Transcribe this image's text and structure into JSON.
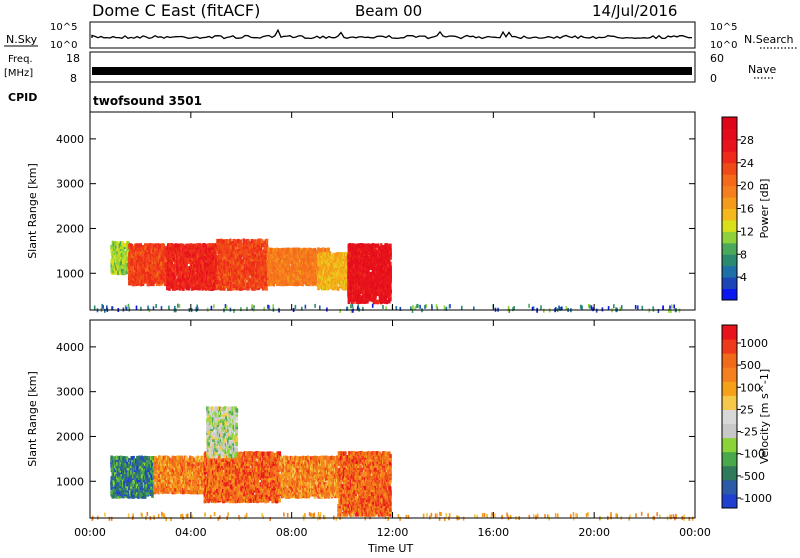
{
  "header": {
    "title": "Dome C East (fitACF)",
    "beam": "Beam 00",
    "date": "14/Jul/2016"
  },
  "aux_panels": {
    "nsky": {
      "label": "N.Sky",
      "scale_top": "10^5",
      "scale_bottom": "10^0"
    },
    "nsearch": {
      "label": "N.Search",
      "scale_top": "10^5",
      "scale_bottom": "10^0"
    },
    "freq": {
      "label_line1": "Freq.",
      "label_line2": "[MHz]",
      "ticks": [
        "18",
        "8"
      ]
    },
    "nave": {
      "label": "Nave",
      "ticks": [
        "60",
        "0"
      ]
    },
    "cpid": {
      "label": "CPID",
      "program": "twofsound  3501"
    }
  },
  "chart_data": [
    {
      "type": "heatmap",
      "name": "power",
      "xlabel": "",
      "ylabel": "Slant Range [km]",
      "xlim": [
        0,
        24
      ],
      "ylim": [
        180,
        4600
      ],
      "yticks": [
        1000,
        2000,
        3000,
        4000
      ],
      "colorbar": {
        "label": "Power [dB]",
        "range": [
          0,
          32
        ],
        "ticks": [
          4,
          8,
          12,
          16,
          20,
          24,
          28
        ],
        "colors": [
          "#0a16f0",
          "#1a46b8",
          "#1e6ea8",
          "#2a8a70",
          "#4aa85a",
          "#8fd13a",
          "#d8e01a",
          "#f5b81a",
          "#f59a1a",
          "#f57e1e",
          "#f56a1a",
          "#f04a18",
          "#ee2a1a",
          "#e8141c",
          "#e40c1c",
          "#e0061a"
        ]
      },
      "regions": [
        {
          "t": [
            0.8,
            1.5
          ],
          "r": [
            1050,
            1750
          ],
          "level": 10
        },
        {
          "t": [
            1.5,
            3.0
          ],
          "r": [
            800,
            1700
          ],
          "level": 22
        },
        {
          "t": [
            3.0,
            5.0
          ],
          "r": [
            700,
            1700
          ],
          "level": 24
        },
        {
          "t": [
            5.0,
            7.0
          ],
          "r": [
            700,
            1800
          ],
          "level": 22
        },
        {
          "t": [
            7.0,
            9.5
          ],
          "r": [
            800,
            1600
          ],
          "level": 18
        },
        {
          "t": [
            9.0,
            10.2
          ],
          "r": [
            700,
            1500
          ],
          "level": 14
        },
        {
          "t": [
            10.2,
            11.9
          ],
          "r": [
            400,
            1700
          ],
          "level": 26
        }
      ],
      "sporadic_range_km": 250
    },
    {
      "type": "heatmap",
      "name": "velocity",
      "xlabel": "Time UT",
      "ylabel": "Slant Range [km]",
      "xlim": [
        0,
        24
      ],
      "ylim": [
        180,
        4600
      ],
      "yticks": [
        1000,
        2000,
        3000,
        4000
      ],
      "xticks": [
        "00:00",
        "04:00",
        "08:00",
        "12:00",
        "16:00",
        "20:00",
        "00:00"
      ],
      "colorbar": {
        "label": "Velocity [m s^-1]",
        "ticks": [
          "1000",
          "500",
          "100",
          "25",
          "-25",
          "-100",
          "-500",
          "-1000"
        ],
        "colors": [
          "#1f3fd0",
          "#2a5aa8",
          "#2e7a5a",
          "#48a84a",
          "#8ad43a",
          "#c8c8c8",
          "#d8d8d8",
          "#f5c84a",
          "#f5a01a",
          "#f58020",
          "#f06a1a",
          "#ee3a1a",
          "#e8141c"
        ]
      },
      "regions": [
        {
          "t": [
            0.8,
            2.5
          ],
          "r": [
            700,
            1600
          ],
          "level": 2
        },
        {
          "t": [
            2.5,
            4.5
          ],
          "r": [
            800,
            1600
          ],
          "level": 9
        },
        {
          "t": [
            4.5,
            7.5
          ],
          "r": [
            600,
            1700
          ],
          "level": 10
        },
        {
          "t": [
            7.5,
            9.8
          ],
          "r": [
            700,
            1600
          ],
          "level": 9
        },
        {
          "t": [
            9.8,
            11.9
          ],
          "r": [
            300,
            1700
          ],
          "level": 10
        },
        {
          "t": [
            4.6,
            5.8
          ],
          "r": [
            1600,
            2700
          ],
          "level": 5
        }
      ],
      "sporadic_range_km": 250
    }
  ]
}
